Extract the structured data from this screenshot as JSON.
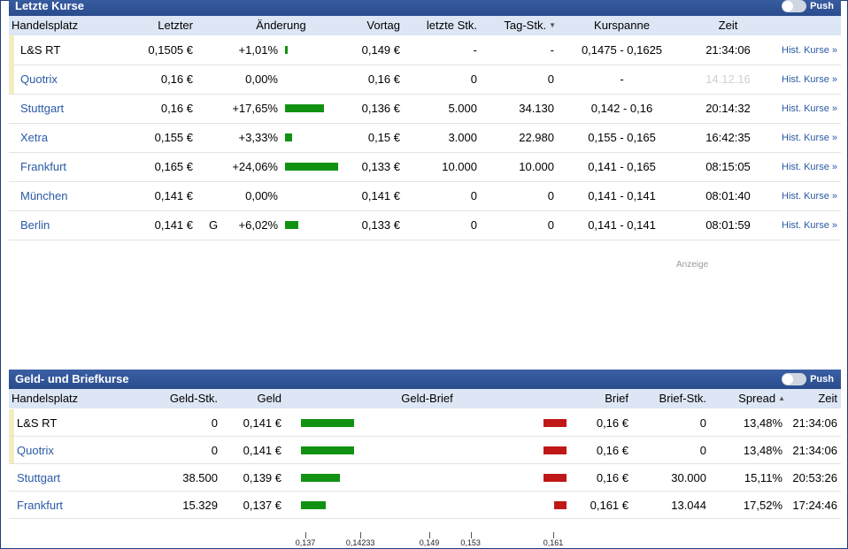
{
  "kurse": {
    "title": "Letzte Kurse",
    "push_label": "Push",
    "headers": {
      "handelsplatz": "Handelsplatz",
      "letzter": "Letzter",
      "aenderung": "Änderung",
      "vortag": "Vortag",
      "letzte_stk": "letzte Stk.",
      "tag_stk": "Tag-Stk.",
      "kurspanne": "Kurspanne",
      "zeit": "Zeit"
    },
    "rows": [
      {
        "name": "L&S RT",
        "letzter": "0,1505 €",
        "flag": "",
        "change": "+1,01%",
        "change_pct": 1.01,
        "vortag": "0,149 €",
        "letzte_stk": "-",
        "tag_stk": "-",
        "kurspanne": "0,1475 - 0,1625",
        "zeit": "21:34:06",
        "hist": "Hist. Kurse »"
      },
      {
        "name": "Quotrix",
        "letzter": "0,16 €",
        "flag": "",
        "change": "0,00%",
        "change_pct": 0,
        "vortag": "0,16 €",
        "letzte_stk": "0",
        "tag_stk": "0",
        "kurspanne": "-",
        "zeit": "14.12.16",
        "hist": "Hist. Kurse »"
      },
      {
        "name": "Stuttgart",
        "letzter": "0,16 €",
        "flag": "",
        "change": "+17,65%",
        "change_pct": 17.65,
        "vortag": "0,136 €",
        "letzte_stk": "5.000",
        "tag_stk": "34.130",
        "kurspanne": "0,142 - 0,16",
        "zeit": "20:14:32",
        "hist": "Hist. Kurse »"
      },
      {
        "name": "Xetra",
        "letzter": "0,155 €",
        "flag": "",
        "change": "+3,33%",
        "change_pct": 3.33,
        "vortag": "0,15 €",
        "letzte_stk": "3.000",
        "tag_stk": "22.980",
        "kurspanne": "0,155 - 0,165",
        "zeit": "16:42:35",
        "hist": "Hist. Kurse »"
      },
      {
        "name": "Frankfurt",
        "letzter": "0,165 €",
        "flag": "",
        "change": "+24,06%",
        "change_pct": 24.06,
        "vortag": "0,133 €",
        "letzte_stk": "10.000",
        "tag_stk": "10.000",
        "kurspanne": "0,141 - 0,165",
        "zeit": "08:15:05",
        "hist": "Hist. Kurse »"
      },
      {
        "name": "München",
        "letzter": "0,141 €",
        "flag": "",
        "change": "0,00%",
        "change_pct": 0,
        "vortag": "0,141 €",
        "letzte_stk": "0",
        "tag_stk": "0",
        "kurspanne": "0,141 - 0,141",
        "zeit": "08:01:40",
        "hist": "Hist. Kurse »"
      },
      {
        "name": "Berlin",
        "letzter": "0,141 €",
        "flag": "G",
        "change": "+6,02%",
        "change_pct": 6.02,
        "vortag": "0,133 €",
        "letzte_stk": "0",
        "tag_stk": "0",
        "kurspanne": "0,141 - 0,141",
        "zeit": "08:01:59",
        "hist": "Hist. Kurse »"
      }
    ],
    "anzeige": "Anzeige"
  },
  "geldbrief": {
    "title": "Geld- und Briefkurse",
    "push_label": "Push",
    "headers": {
      "handelsplatz": "Handelsplatz",
      "geld_stk": "Geld-Stk.",
      "geld": "Geld",
      "geld_brief": "Geld-Brief",
      "brief": "Brief",
      "brief_stk": "Brief-Stk.",
      "spread": "Spread",
      "zeit": "Zeit"
    },
    "rows": [
      {
        "name": "L&S RT",
        "geld_stk": "0",
        "geld": "0,141 €",
        "geld_value": 0.141,
        "brief": "0,16 €",
        "brief_value": 0.16,
        "brief_stk": "0",
        "spread": "13,48%",
        "zeit": "21:34:06"
      },
      {
        "name": "Quotrix",
        "geld_stk": "0",
        "geld": "0,141 €",
        "geld_value": 0.141,
        "brief": "0,16 €",
        "brief_value": 0.16,
        "brief_stk": "0",
        "spread": "13,48%",
        "zeit": "21:34:06"
      },
      {
        "name": "Stuttgart",
        "geld_stk": "38.500",
        "geld": "0,139 €",
        "geld_value": 0.139,
        "brief": "0,16 €",
        "brief_value": 0.16,
        "brief_stk": "30.000",
        "spread": "15,11%",
        "zeit": "20:53:26"
      },
      {
        "name": "Frankfurt",
        "geld_stk": "15.329",
        "geld": "0,137 €",
        "geld_value": 0.137,
        "brief": "0,161 €",
        "brief_value": 0.161,
        "brief_stk": "13.044",
        "spread": "17,52%",
        "zeit": "17:24:46"
      }
    ],
    "axis_ticks": [
      "0,137",
      "0,14233",
      "0,149",
      "0,153",
      "0,161"
    ],
    "axis_tick_values": [
      0.137,
      0.14233,
      0.149,
      0.153,
      0.161
    ]
  },
  "colors": {
    "header_blue": "#2a4c8e",
    "colhead_bg": "#dde6f5",
    "positive_bar": "#129212",
    "negative_bar": "#c01818",
    "link": "#2a5aa5",
    "marker": "#f2edc0"
  }
}
